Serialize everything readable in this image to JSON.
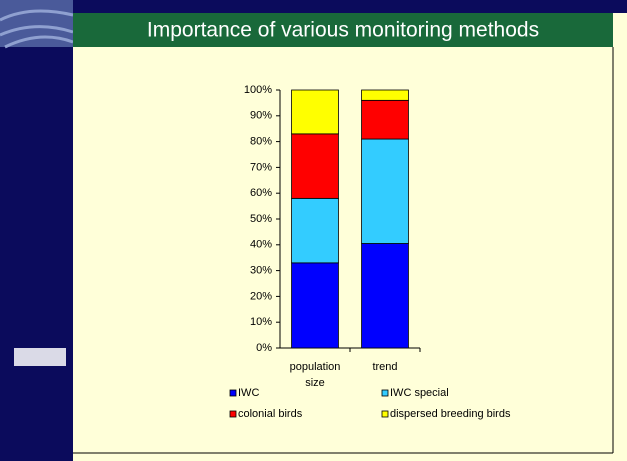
{
  "chart_data": {
    "type": "bar",
    "stacked": true,
    "title": "Importance of various monitoring methods",
    "categories": [
      "population size",
      "trend"
    ],
    "series": [
      {
        "name": "IWC",
        "color": "#0000ff",
        "values": [
          33,
          40.5
        ]
      },
      {
        "name": "IWC special",
        "color": "#33ccff",
        "values": [
          25,
          40.5
        ]
      },
      {
        "name": "colonial birds",
        "color": "#ff0000",
        "values": [
          25,
          15
        ]
      },
      {
        "name": "dispersed breeding birds",
        "color": "#ffff00",
        "values": [
          17,
          4
        ]
      }
    ],
    "ylim": [
      0,
      100
    ],
    "yticks": [
      {
        "value": 0,
        "label": "0%"
      },
      {
        "value": 10,
        "label": "10%"
      },
      {
        "value": 20,
        "label": "20%"
      },
      {
        "value": 30,
        "label": "30%"
      },
      {
        "value": 40,
        "label": "40%"
      },
      {
        "value": 50,
        "label": "50%"
      },
      {
        "value": 60,
        "label": "60%"
      },
      {
        "value": 70,
        "label": "70%"
      },
      {
        "value": 80,
        "label": "80%"
      },
      {
        "value": 90,
        "label": "90%"
      },
      {
        "value": 100,
        "label": "100%"
      }
    ],
    "legend": "bottom",
    "grid": false
  }
}
